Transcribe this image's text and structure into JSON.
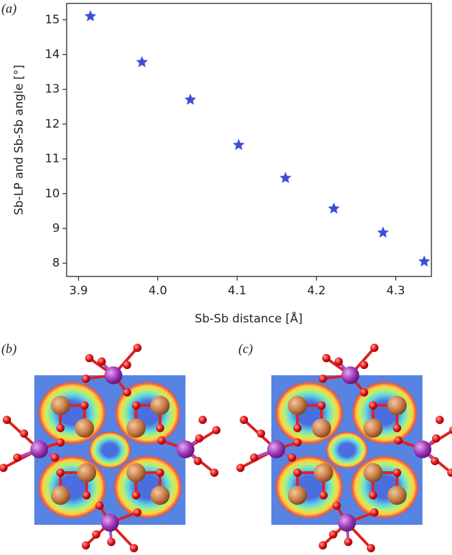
{
  "panel_labels": [
    "(a)",
    "(b)",
    "(c)"
  ],
  "chart_data": {
    "type": "scatter",
    "xlabel": "Sb-Sb distance [Å]",
    "ylabel": "Sb-LP and Sb-Sb angle [°]",
    "x": [
      3.915,
      3.98,
      4.041,
      4.102,
      4.161,
      4.222,
      4.284,
      4.336
    ],
    "values": [
      15.1,
      13.78,
      12.7,
      11.4,
      10.45,
      9.57,
      8.88,
      8.05
    ],
    "color": "#3a4fd8",
    "marker": "star",
    "xlim": [
      3.885,
      4.345
    ],
    "ylim": [
      7.62,
      15.47
    ],
    "xticks": [
      3.9,
      {
        "value": 4,
        "label": "4.0"
      },
      4.1,
      4.2,
      4.3
    ],
    "yticks": [
      8,
      9,
      10,
      11,
      12,
      13,
      14,
      15
    ],
    "grid": false
  }
}
